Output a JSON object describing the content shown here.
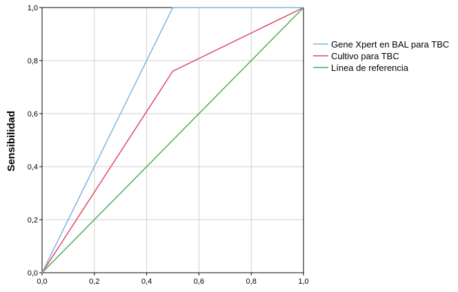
{
  "chart_data": {
    "type": "line",
    "title": "",
    "xlabel": "",
    "ylabel": "Sensibilidad",
    "xlim": [
      0,
      1
    ],
    "ylim": [
      0,
      1
    ],
    "x_ticks": [
      "0,0",
      "0,2",
      "0,4",
      "0,6",
      "0,8",
      "1,0"
    ],
    "y_ticks": [
      "0,0",
      "0,2",
      "0,4",
      "0,6",
      "0,8",
      "1,0"
    ],
    "grid": true,
    "legend_position": "right",
    "series": [
      {
        "name": "Gene Xpert en BAL para TBC",
        "color": "#7ab6e0",
        "points": [
          [
            0,
            0
          ],
          [
            0.5,
            1.0
          ],
          [
            1.0,
            1.0
          ]
        ]
      },
      {
        "name": "Cultivo para TBC",
        "color": "#e0436a",
        "points": [
          [
            0,
            0
          ],
          [
            0.5,
            0.76
          ],
          [
            1.0,
            1.0
          ]
        ]
      },
      {
        "name": "Línea de referencia",
        "color": "#4cab5a",
        "points": [
          [
            0,
            0
          ],
          [
            1.0,
            1.0
          ]
        ]
      }
    ]
  }
}
